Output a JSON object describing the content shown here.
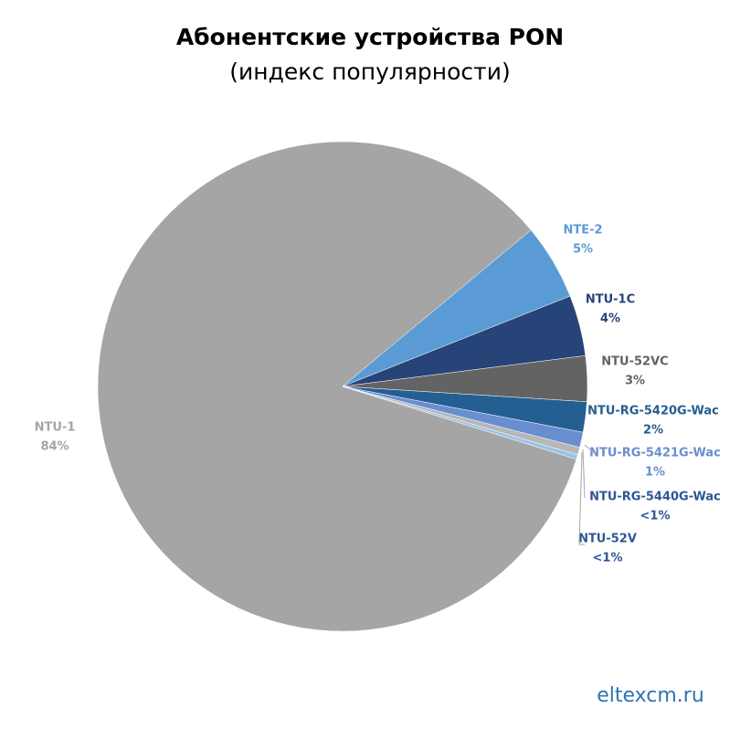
{
  "chart_data": {
    "type": "pie",
    "title": "Абонентские устройства PON",
    "subtitle": "(индекс популярности)",
    "categories": [
      "NTU-1",
      "NTE-2",
      "NTU-1C",
      "NTU-52VC",
      "NTU-RG-5420G-Wac",
      "NTU-RG-5421G-Wac",
      "NTU-RG-5440G-Wac",
      "NTU-52V"
    ],
    "values": [
      84,
      5,
      4,
      3,
      2,
      1,
      0.5,
      0.3
    ],
    "value_labels": [
      "84%",
      "5%",
      "4%",
      "3%",
      "2%",
      "1%",
      "<1%",
      "<1%"
    ],
    "colors": [
      "#a5a5a5",
      "#5b9bd5",
      "#264478",
      "#636363",
      "#255e91",
      "#698ed0",
      "#b7b7b7",
      "#9dc3e6"
    ],
    "label_colors": [
      "#a5a5a5",
      "#5b9bd5",
      "#264478",
      "#636363",
      "#255e91",
      "#698ed0",
      "#2f5597",
      "#2f5597"
    ],
    "source": "eltexcm.ru"
  }
}
